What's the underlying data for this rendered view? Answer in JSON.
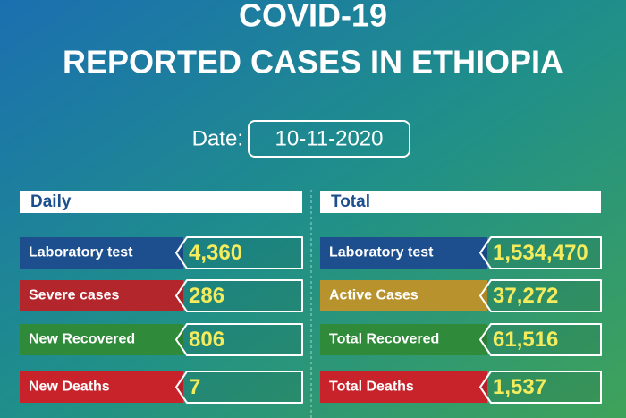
{
  "title": [
    "COVID-19",
    "REPORTED CASES IN ETHIOPIA"
  ],
  "date": {
    "label": "Date:",
    "value": "10-11-2020"
  },
  "panels": [
    {
      "title": "Daily",
      "rows": [
        {
          "label": "Laboratory test",
          "value": "4,360",
          "color": "#1d4f8f"
        },
        {
          "label": "Severe cases",
          "value": "286",
          "color": "#b3262c"
        },
        {
          "label": "New Recovered",
          "value": "806",
          "color": "#2f8a3a"
        },
        {
          "label": "New Deaths",
          "value": "7",
          "color": "#c8232b"
        }
      ]
    },
    {
      "title": "Total",
      "rows": [
        {
          "label": "Laboratory test",
          "value": "1,534,470",
          "color": "#1d4f8f"
        },
        {
          "label": "Active Cases",
          "value": "37,272",
          "color": "#b8922c"
        },
        {
          "label": "Total Recovered",
          "value": "61,516",
          "color": "#2f8a3a"
        },
        {
          "label": "Total Deaths",
          "value": "1,537",
          "color": "#c8232b"
        }
      ]
    }
  ]
}
